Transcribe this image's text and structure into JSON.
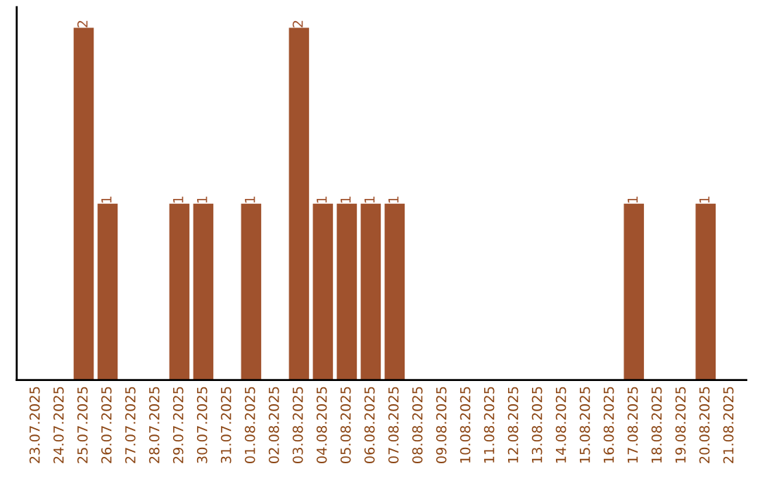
{
  "chart_data": {
    "type": "bar",
    "categories": [
      "23.07.2025",
      "24.07.2025",
      "25.07.2025",
      "26.07.2025",
      "27.07.2025",
      "28.07.2025",
      "29.07.2025",
      "30.07.2025",
      "31.07.2025",
      "01.08.2025",
      "02.08.2025",
      "03.08.2025",
      "04.08.2025",
      "05.08.2025",
      "06.08.2025",
      "07.08.2025",
      "08.08.2025",
      "09.08.2025",
      "10.08.2025",
      "11.08.2025",
      "12.08.2025",
      "13.08.2025",
      "14.08.2025",
      "15.08.2025",
      "16.08.2025",
      "17.08.2025",
      "18.08.2025",
      "19.08.2025",
      "20.08.2025",
      "21.08.2025"
    ],
    "values": [
      0,
      0,
      2,
      1,
      0,
      0,
      1,
      1,
      0,
      1,
      0,
      2,
      1,
      1,
      1,
      1,
      0,
      0,
      0,
      0,
      0,
      0,
      0,
      0,
      0,
      1,
      0,
      0,
      1,
      0
    ],
    "value_labels": [
      null,
      null,
      "2",
      "1",
      null,
      null,
      "1",
      "1",
      null,
      "1",
      null,
      "2",
      "1",
      "1",
      "1",
      "1",
      null,
      null,
      null,
      null,
      null,
      null,
      null,
      null,
      null,
      "1",
      null,
      null,
      "1",
      null
    ],
    "color": "#a0522d",
    "ylim": [
      0,
      2.12
    ],
    "tick_labels": "x",
    "grid": false,
    "legend": false
  }
}
